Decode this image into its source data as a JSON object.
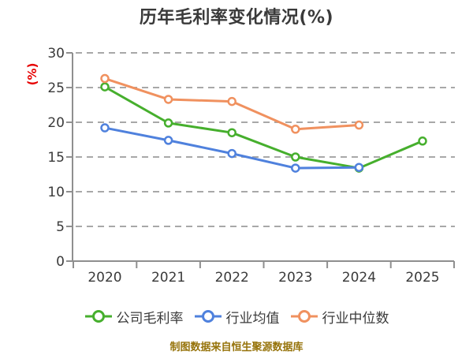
{
  "title": "历年毛利率变化情况(%)",
  "footer": "制图数据来自恒生聚源数据库",
  "colors": {
    "title_text": "#3a3a3a",
    "axis_text": "#3a3a3a",
    "axis_line": "#8f8f8f",
    "gridline": "#a8a8a8",
    "y_unit_label": "#e60000",
    "footer_text": "#96730a",
    "background": "#ffffff",
    "marker_fill": "#ffffff"
  },
  "chart_data": {
    "type": "line",
    "title": "历年毛利率变化情况(%)",
    "categories": [
      "2020",
      "2021",
      "2022",
      "2023",
      "2024",
      "2025"
    ],
    "series": [
      {
        "name": "公司毛利率",
        "color": "#46af2d",
        "values": [
          25.1,
          19.9,
          18.5,
          15.0,
          13.4,
          17.3
        ]
      },
      {
        "name": "行业均值",
        "color": "#4f81dd",
        "values": [
          19.2,
          17.4,
          15.5,
          13.4,
          13.5,
          null
        ]
      },
      {
        "name": "行业中位数",
        "color": "#f0915f",
        "values": [
          26.3,
          23.3,
          23.0,
          19.0,
          19.6,
          null
        ]
      }
    ],
    "ylabel": "(%)",
    "xlabel": "",
    "ylim": [
      0,
      30
    ],
    "yticks": [
      0,
      5,
      10,
      15,
      20,
      25,
      30
    ],
    "grid": "horizontal dashed",
    "legend_position": "bottom",
    "markers": "circle-white-fill"
  }
}
